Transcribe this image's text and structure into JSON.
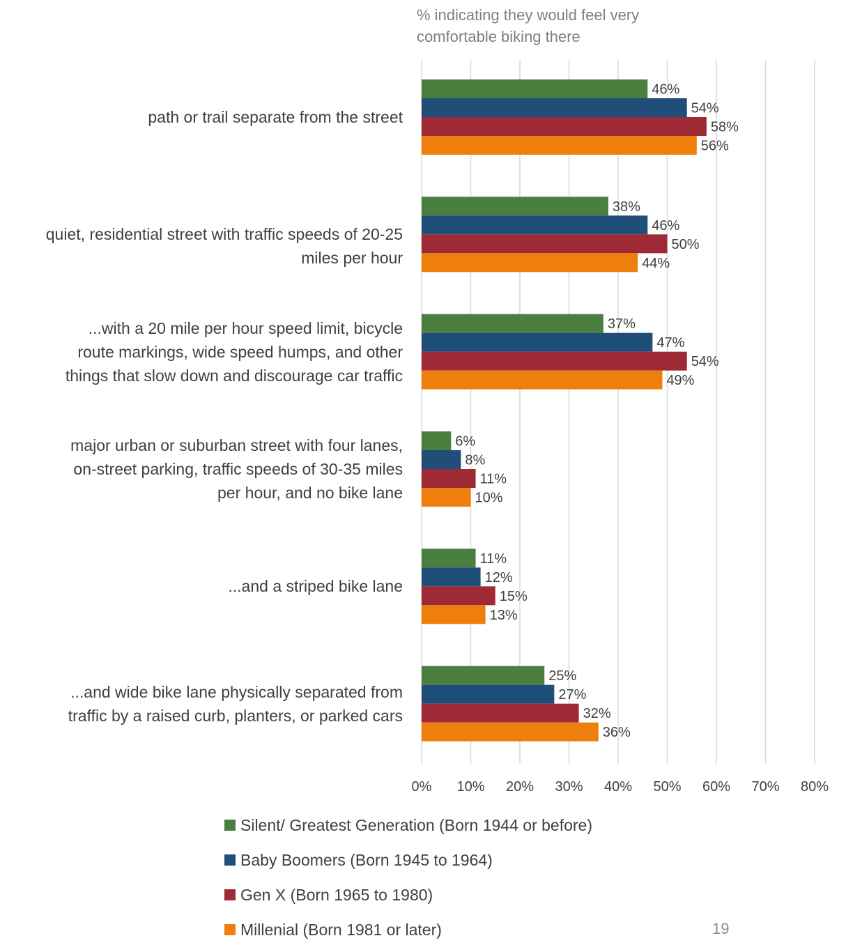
{
  "axis_title": "% indicating they would feel very comfortable biking there",
  "page_number": "19",
  "chart_data": {
    "type": "bar",
    "orientation": "horizontal",
    "categories": [
      "path or trail separate from the street",
      "quiet, residential street with traffic speeds of 20-25 miles per hour",
      "...with a 20 mile per hour speed limit, bicycle route markings, wide speed humps, and other things that slow down and discourage car traffic",
      "major urban or suburban street with four lanes, on-street parking, traffic speeds of 30-35 miles per hour, and no bike lane",
      "...and a striped bike lane",
      "...and wide bike lane physically separated from traffic by a raised curb, planters, or parked cars"
    ],
    "series": [
      {
        "name": "Silent/ Greatest Generation (Born 1944 or before)",
        "color": "#4a7f3f",
        "values": [
          46,
          38,
          37,
          6,
          11,
          25
        ]
      },
      {
        "name": "Baby Boomers (Born 1945 to 1964)",
        "color": "#1f4e79",
        "values": [
          54,
          46,
          47,
          8,
          12,
          27
        ]
      },
      {
        "name": "Gen X (Born 1965 to 1980)",
        "color": "#9e2a35",
        "values": [
          58,
          50,
          54,
          11,
          15,
          32
        ]
      },
      {
        "name": "Millenial (Born 1981 or later)",
        "color": "#ef7f0c",
        "values": [
          56,
          44,
          49,
          10,
          13,
          36
        ]
      }
    ],
    "value_suffix": "%",
    "xlim": [
      0,
      80
    ],
    "xticks": [
      0,
      10,
      20,
      30,
      40,
      50,
      60,
      70,
      80
    ],
    "xtick_labels": [
      "0%",
      "10%",
      "20%",
      "30%",
      "40%",
      "50%",
      "60%",
      "70%",
      "80%"
    ],
    "grid": "vertical",
    "legend_position": "bottom",
    "xlabel": "% indicating they would feel very comfortable biking there"
  }
}
